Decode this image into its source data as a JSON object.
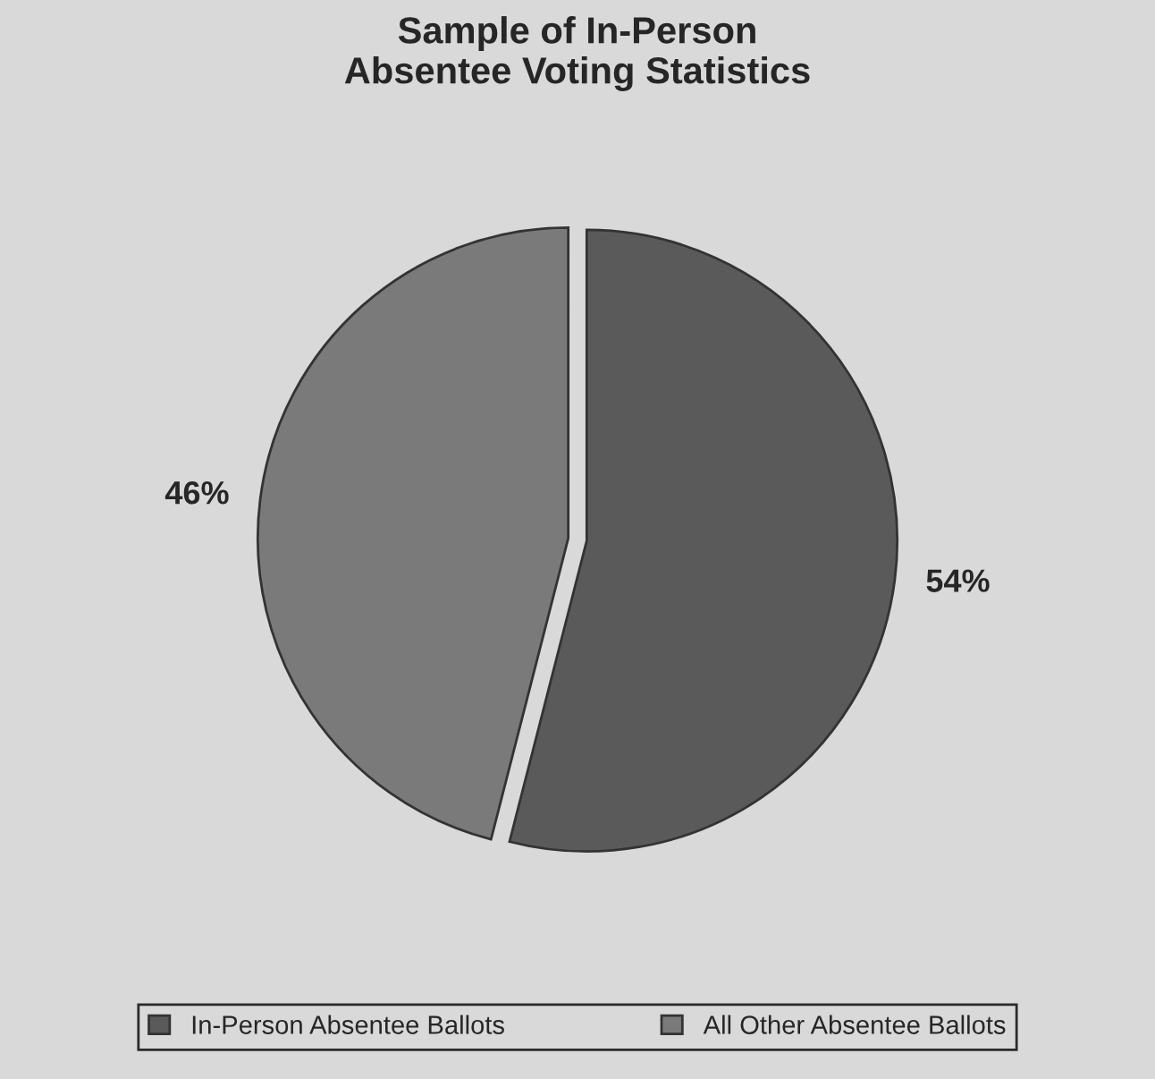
{
  "chart_data": {
    "type": "pie",
    "title": "Sample of In-Person\nAbsentee Voting Statistics",
    "categories": [
      "In-Person Absentee Ballots",
      "All Other Absentee Ballots"
    ],
    "values": [
      54,
      46
    ],
    "colors": [
      "#5a5a5a",
      "#7a7a7a"
    ],
    "value_labels": [
      "54%",
      "46%"
    ],
    "legend": "bottom"
  }
}
